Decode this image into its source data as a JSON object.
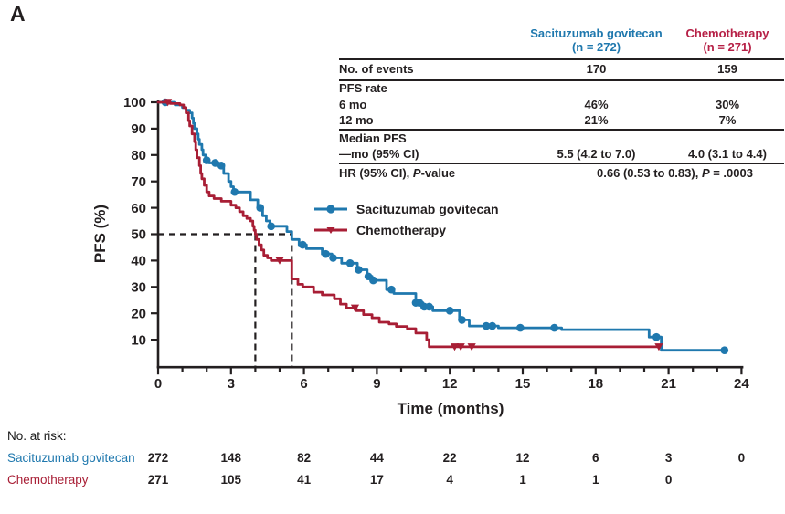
{
  "panel_label": "A",
  "colors": {
    "sg": "#1f78ae",
    "chemo": "#a81e35",
    "chemo_header": "#b62046",
    "axis": "#231f20"
  },
  "summary_table": {
    "col_sg": {
      "name": "Sacituzumab govitecan",
      "n": "(n = 272)"
    },
    "col_chemo": {
      "name": "Chemotherapy",
      "n": "(n = 271)"
    },
    "rows": {
      "events": {
        "label": "No. of events",
        "sg": "170",
        "chemo": "159"
      },
      "pfs_rate_label": "PFS rate",
      "rate6": {
        "label": "6 mo",
        "sg": "46%",
        "chemo": "30%"
      },
      "rate12": {
        "label": "12 mo",
        "sg": "21%",
        "chemo": "7%"
      },
      "median": {
        "label1": "Median PFS",
        "label2": "—mo (95% CI)",
        "sg": "5.5 (4.2 to 7.0)",
        "chemo": "4.0 (3.1 to 4.4)"
      },
      "hr": {
        "label_prefix": "HR (95% CI), ",
        "label_italic": "P",
        "label_suffix": "-value",
        "value_prefix": "0.66 (0.53 to 0.83), ",
        "value_italic": "P",
        "value_suffix": " = .0003"
      }
    }
  },
  "legend": {
    "entries": [
      {
        "label": "Sacituzumab govitecan",
        "marker": "circle"
      },
      {
        "label": "Chemotherapy",
        "marker": "triangle-down"
      }
    ]
  },
  "risk_table": {
    "title": "No. at risk:",
    "months": [
      0,
      3,
      6,
      9,
      12,
      15,
      18,
      21,
      24
    ],
    "rows": [
      {
        "name": "Sacituzumab govitecan",
        "values": [
          "272",
          "148",
          "82",
          "44",
          "22",
          "12",
          "6",
          "3",
          "0"
        ]
      },
      {
        "name": "Chemotherapy",
        "values": [
          "271",
          "105",
          "41",
          "17",
          "4",
          "1",
          "1",
          "0",
          ""
        ]
      }
    ]
  },
  "chart_data": {
    "type": "line",
    "subtype": "kaplan-meier-step",
    "title": "",
    "xlabel": "Time (months)",
    "ylabel": "PFS (%)",
    "xlim": [
      0,
      24
    ],
    "ylim": [
      0,
      100
    ],
    "xticks": [
      0,
      3,
      6,
      9,
      12,
      15,
      18,
      21,
      24
    ],
    "x_minor_tick_interval": 1,
    "yticks": [
      100,
      90,
      80,
      70,
      60,
      50,
      40,
      30,
      20,
      10
    ],
    "grid": false,
    "legend_position": "inside-upper-middle",
    "median_lines": {
      "y": 50,
      "x_values": [
        4.0,
        5.5
      ]
    },
    "series": [
      {
        "name": "Sacituzumab govitecan",
        "color": "#1f78ae",
        "marker": "circle",
        "steps": [
          [
            0,
            100
          ],
          [
            0.7,
            99
          ],
          [
            1.0,
            98
          ],
          [
            1.15,
            97
          ],
          [
            1.3,
            96
          ],
          [
            1.4,
            94
          ],
          [
            1.45,
            92
          ],
          [
            1.5,
            90
          ],
          [
            1.6,
            88
          ],
          [
            1.65,
            86
          ],
          [
            1.7,
            84
          ],
          [
            1.8,
            82
          ],
          [
            1.85,
            80
          ],
          [
            1.95,
            78
          ],
          [
            2.1,
            77
          ],
          [
            2.5,
            76
          ],
          [
            2.7,
            73
          ],
          [
            2.9,
            70
          ],
          [
            3.0,
            68
          ],
          [
            3.1,
            66
          ],
          [
            3.8,
            63
          ],
          [
            4.1,
            60
          ],
          [
            4.3,
            57
          ],
          [
            4.45,
            55
          ],
          [
            4.6,
            53
          ],
          [
            5.3,
            51
          ],
          [
            5.5,
            48
          ],
          [
            5.8,
            46
          ],
          [
            6.1,
            44.5
          ],
          [
            6.75,
            42.5
          ],
          [
            7.15,
            41
          ],
          [
            7.55,
            39
          ],
          [
            8.2,
            36.5
          ],
          [
            8.6,
            34
          ],
          [
            8.8,
            32.5
          ],
          [
            9.4,
            29
          ],
          [
            9.7,
            27.5
          ],
          [
            10.6,
            24
          ],
          [
            10.9,
            22.5
          ],
          [
            11.3,
            21
          ],
          [
            12.4,
            17.5
          ],
          [
            12.8,
            15.2
          ],
          [
            14.0,
            14.5
          ],
          [
            16.6,
            13.8
          ],
          [
            20.2,
            11
          ],
          [
            20.7,
            6
          ],
          [
            23.3,
            6
          ]
        ],
        "censor_months": [
          0.3,
          2.0,
          2.35,
          2.6,
          3.15,
          4.2,
          4.65,
          5.95,
          6.9,
          7.2,
          7.9,
          8.25,
          8.65,
          8.85,
          9.6,
          10.6,
          10.75,
          10.95,
          11.15,
          12.0,
          12.5,
          13.5,
          13.75,
          14.9,
          16.3,
          20.5,
          23.3
        ]
      },
      {
        "name": "Chemotherapy",
        "color": "#a81e35",
        "marker": "triangle-down",
        "steps": [
          [
            0,
            100
          ],
          [
            0.5,
            99.5
          ],
          [
            0.9,
            99
          ],
          [
            1.05,
            98
          ],
          [
            1.15,
            96
          ],
          [
            1.25,
            93
          ],
          [
            1.3,
            91
          ],
          [
            1.4,
            88
          ],
          [
            1.5,
            85
          ],
          [
            1.55,
            82
          ],
          [
            1.6,
            79
          ],
          [
            1.7,
            76
          ],
          [
            1.75,
            73
          ],
          [
            1.8,
            71
          ],
          [
            1.9,
            68.5
          ],
          [
            2.0,
            66
          ],
          [
            2.1,
            64.5
          ],
          [
            2.3,
            63.5
          ],
          [
            2.6,
            62.5
          ],
          [
            3.0,
            61
          ],
          [
            3.2,
            60
          ],
          [
            3.35,
            58.5
          ],
          [
            3.5,
            57
          ],
          [
            3.65,
            56
          ],
          [
            3.8,
            55
          ],
          [
            3.9,
            53
          ],
          [
            3.95,
            51.5
          ],
          [
            4.0,
            50
          ],
          [
            4.05,
            48
          ],
          [
            4.15,
            46
          ],
          [
            4.25,
            44
          ],
          [
            4.35,
            42
          ],
          [
            4.5,
            41
          ],
          [
            4.65,
            40
          ],
          [
            5.5,
            33
          ],
          [
            5.75,
            31
          ],
          [
            5.95,
            30
          ],
          [
            6.4,
            28
          ],
          [
            6.75,
            27
          ],
          [
            7.25,
            25.5
          ],
          [
            7.5,
            23.5
          ],
          [
            7.75,
            22
          ],
          [
            8.15,
            21
          ],
          [
            8.45,
            19.5
          ],
          [
            8.8,
            18.3
          ],
          [
            9.1,
            16.6
          ],
          [
            9.5,
            16
          ],
          [
            9.8,
            15
          ],
          [
            10.25,
            14.2
          ],
          [
            10.6,
            12.5
          ],
          [
            11.05,
            10
          ],
          [
            11.15,
            7.3
          ],
          [
            20.6,
            7.3
          ]
        ],
        "censor_months": [
          0.4,
          5.0,
          8.1,
          12.2,
          12.45,
          12.9,
          20.6
        ]
      }
    ]
  }
}
